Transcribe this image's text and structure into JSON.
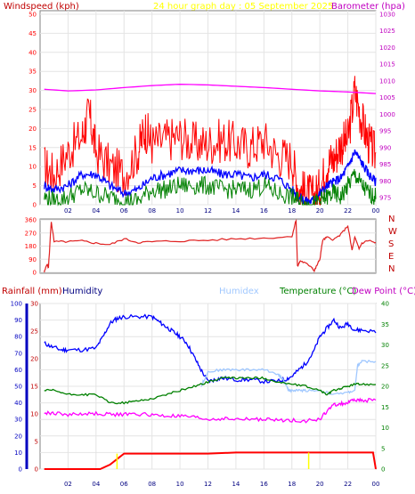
{
  "chart_data": [
    {
      "type": "line",
      "header": {
        "left": "Windspeed (kph)",
        "center": "24 hour graph day : 05 September 2025",
        "right": "Barometer (hpa)"
      },
      "x_ticks": [
        "02",
        "04",
        "06",
        "08",
        "10",
        "12",
        "14",
        "16",
        "18",
        "20",
        "22",
        "00"
      ],
      "y_left_ticks": [
        0,
        5,
        10,
        15,
        20,
        25,
        30,
        35,
        40,
        45,
        50
      ],
      "y_left_range": [
        0,
        50
      ],
      "y_right_ticks": [
        975,
        980,
        985,
        990,
        995,
        1000,
        1005,
        1010,
        1015,
        1020,
        1025,
        1030
      ],
      "y_right_range": [
        975,
        1030
      ],
      "colors": {
        "gust": "#ff0000",
        "average": "#0000ff",
        "minimum": "#008000",
        "barometer": "#ff00ff",
        "header_left": "#c00000",
        "header_center": "#ffff00",
        "header_right": "#c000c0",
        "ticks_left": "#ff0000",
        "ticks_right": "#c000c0",
        "ticks_x": "#000080"
      },
      "series": [
        {
          "key": "gust",
          "x": [
            0.3,
            1,
            2,
            3,
            3.5,
            4,
            5,
            6,
            7,
            7.5,
            8,
            9,
            10,
            11,
            12,
            13,
            14,
            15,
            16,
            17,
            18,
            18.5,
            19,
            19.5,
            20,
            20.5,
            21,
            21.5,
            22,
            22.5,
            23,
            23.5,
            24
          ],
          "values": [
            10,
            8,
            14,
            18,
            24,
            14,
            10,
            8,
            14,
            20,
            16,
            17,
            18,
            16,
            16,
            17,
            16,
            15,
            17,
            13,
            12,
            4,
            3,
            2,
            4,
            11,
            12,
            16,
            17,
            30,
            22,
            16,
            13
          ]
        },
        {
          "key": "average",
          "x": [
            0.3,
            1,
            2,
            3,
            4,
            5,
            6,
            7,
            8,
            9,
            10,
            11,
            12,
            13,
            14,
            15,
            16,
            17,
            18,
            18.5,
            19,
            19.5,
            20,
            20.5,
            21,
            21.5,
            22,
            22.5,
            23,
            23.5,
            24
          ],
          "values": [
            5,
            4,
            5,
            8,
            8,
            5,
            3,
            4,
            7,
            8,
            9,
            9,
            9,
            8,
            8,
            7,
            8,
            7,
            4,
            2,
            1,
            1,
            3,
            5,
            6,
            7,
            10,
            14,
            11,
            8,
            6
          ]
        },
        {
          "key": "minimum",
          "x": [
            0.3,
            1,
            2,
            3,
            4,
            5,
            6,
            7,
            8,
            9,
            10,
            11,
            12,
            13,
            14,
            15,
            16,
            17,
            18,
            18.5,
            19,
            19.5,
            20,
            20.5,
            21,
            21.5,
            22,
            22.5,
            23,
            23.5,
            24
          ],
          "values": [
            2,
            1,
            2,
            4,
            3,
            2,
            1,
            1,
            4,
            4,
            5,
            5,
            5,
            4,
            4,
            4,
            5,
            3,
            2,
            1,
            0,
            0,
            1,
            2,
            3,
            2,
            5,
            8,
            5,
            3,
            2
          ]
        },
        {
          "key": "barometer",
          "x": [
            0.3,
            2,
            4,
            6,
            8,
            10,
            12,
            14,
            16,
            18,
            20,
            22,
            24
          ],
          "values": [
            1007.5,
            1007,
            1007.3,
            1008,
            1008.6,
            1009,
            1008.8,
            1008.4,
            1008,
            1007.5,
            1007,
            1006.7,
            1006.2
          ]
        }
      ]
    },
    {
      "type": "line",
      "y_ticks": [
        "360",
        "270",
        "180",
        "90",
        "0"
      ],
      "y_range": [
        0,
        360
      ],
      "compass_labels": [
        "N",
        "W",
        "S",
        "E",
        "N"
      ],
      "colors": {
        "direction": "#e02020",
        "ticks": "#ff0000",
        "compass": "#c00000"
      },
      "series": [
        {
          "key": "direction",
          "x": [
            0.3,
            0.5,
            0.6,
            0.8,
            1,
            2,
            3,
            4,
            5,
            6,
            7,
            8,
            10,
            12,
            14,
            16,
            18,
            18.3,
            18.4,
            18.6,
            19,
            19.4,
            19.6,
            19.8,
            20,
            20.2,
            20.5,
            21,
            21.5,
            22,
            22.3,
            22.5,
            22.8,
            23,
            23.5,
            24
          ],
          "values": [
            0,
            60,
            30,
            350,
            210,
            210,
            215,
            200,
            190,
            230,
            205,
            210,
            215,
            220,
            230,
            235,
            245,
            360,
            40,
            80,
            60,
            40,
            10,
            50,
            90,
            220,
            240,
            225,
            260,
            320,
            150,
            240,
            160,
            200,
            220,
            200
          ]
        }
      ]
    },
    {
      "type": "line",
      "header": {
        "rainfall": "Rainfall (mm)",
        "humidity": "Humidity",
        "humidex": "Humidex",
        "temperature": "Temperature (°C)",
        "dewpoint": "Dew Point (°C)"
      },
      "x_ticks": [
        "02",
        "04",
        "06",
        "08",
        "10",
        "12",
        "14",
        "16",
        "18",
        "20",
        "22",
        "00"
      ],
      "y_humidity_ticks": [
        0,
        10,
        20,
        30,
        40,
        50,
        60,
        70,
        80,
        90,
        100
      ],
      "y_rain_ticks": [
        0,
        5,
        10,
        15,
        20,
        25,
        30
      ],
      "y_temp_ticks": [
        0,
        5,
        10,
        15,
        20,
        25,
        30,
        35,
        40
      ],
      "y_humidity_range": [
        0,
        100
      ],
      "y_rain_range": [
        0,
        30
      ],
      "y_temp_range": [
        0,
        40
      ],
      "colors": {
        "humidity": "#0000ff",
        "humidex": "#a0c8ff",
        "temperature": "#008000",
        "dewpoint": "#ff00ff",
        "rainfall": "#ff0000",
        "rain_rate": "#ffff00",
        "header_rain": "#c00000",
        "header_humidity": "#000080",
        "header_humidex": "#a0c8ff",
        "header_temp": "#008000",
        "header_dew": "#c000c0",
        "humidity_axis": "#0000c0",
        "rain_axis": "#c00000",
        "temp_axis": "#008000"
      },
      "series": [
        {
          "key": "humidity",
          "x": [
            0.3,
            0.8,
            1.5,
            2,
            3,
            4,
            4.5,
            5,
            5.5,
            6,
            7,
            8,
            8.5,
            9,
            9.5,
            10,
            10.5,
            11,
            11.5,
            12,
            12.5,
            13,
            14,
            15,
            16,
            17,
            17.5,
            18,
            18.5,
            19,
            19.5,
            20,
            20.5,
            21,
            21.5,
            22,
            22.5,
            23,
            24
          ],
          "values": [
            76,
            74,
            72,
            72,
            72,
            73,
            80,
            88,
            91,
            92,
            92,
            92,
            89,
            86,
            83,
            80,
            76,
            68,
            60,
            53,
            54,
            55,
            54,
            54,
            53,
            53,
            54,
            56,
            60,
            64,
            70,
            80,
            85,
            90,
            85,
            88,
            84,
            84,
            83
          ]
        },
        {
          "key": "humidex",
          "x": [
            11.5,
            11.8,
            12,
            13,
            14,
            15,
            16,
            17,
            17.3,
            17.6,
            17.8,
            18,
            18.5,
            19,
            20,
            21,
            22,
            22.5,
            22.7,
            23,
            24
          ],
          "values": [
            20,
            22,
            23.5,
            24,
            24,
            24,
            24,
            23,
            22,
            20,
            19,
            19,
            19,
            19,
            19,
            18,
            18.5,
            19,
            25,
            26,
            26
          ]
        },
        {
          "key": "temperature",
          "x": [
            0.3,
            1,
            2,
            3,
            4,
            5,
            6,
            7,
            8,
            9,
            10,
            11,
            12,
            13,
            14,
            15,
            16,
            17,
            18,
            19,
            20,
            20.5,
            21,
            21.5,
            22,
            22.5,
            23,
            24
          ],
          "values": [
            19,
            19,
            18,
            18,
            18,
            16,
            16,
            16.5,
            17,
            18,
            19,
            20,
            21,
            22,
            22,
            22,
            22,
            21,
            20.5,
            20,
            19,
            18,
            19,
            19.5,
            20,
            20.5,
            20.5,
            20.5
          ]
        },
        {
          "key": "dewpoint",
          "x": [
            0.3,
            1,
            2,
            3,
            4,
            5,
            6,
            7,
            8,
            9,
            10,
            11,
            12,
            13,
            14,
            15,
            16,
            17,
            18,
            19,
            20,
            20.5,
            21,
            21.5,
            22,
            22.5,
            23,
            24
          ],
          "values": [
            13.5,
            13.5,
            13.2,
            13.3,
            13.4,
            13.2,
            13.2,
            13.3,
            13.1,
            12.8,
            12.8,
            12.5,
            12.0,
            12.2,
            12.0,
            12.1,
            12.0,
            11.8,
            11.8,
            11.7,
            12.0,
            14.0,
            15.5,
            15.8,
            16.0,
            16.8,
            16.5,
            16.8
          ]
        },
        {
          "key": "rainfall",
          "x": [
            0.3,
            1,
            2,
            3,
            4,
            4.3,
            5,
            5.5,
            6,
            8,
            10,
            12,
            14,
            16,
            18,
            20,
            22,
            23.8,
            24
          ],
          "values": [
            0,
            0,
            0,
            0,
            0,
            0,
            0.8,
            1.8,
            2.8,
            2.8,
            2.8,
            2.8,
            3.0,
            3.0,
            3.0,
            3.0,
            3.0,
            3.0,
            0
          ]
        },
        {
          "key": "rain_rate",
          "x": [
            5.5,
            5.5,
            19.2,
            19.2
          ],
          "values": [
            2.8,
            0,
            3.0,
            0
          ]
        }
      ]
    }
  ]
}
